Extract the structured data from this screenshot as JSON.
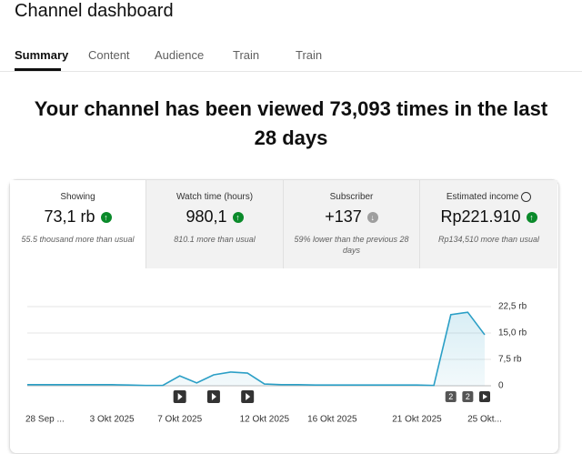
{
  "header": {
    "title": "Channel dashboard"
  },
  "tabs": [
    "Summary",
    "Content",
    "Audience",
    "Train",
    "Train"
  ],
  "headline": "Your channel has been viewed 73,093 times in the last 28 days",
  "metrics": [
    {
      "label": "Showing",
      "value": "73,1 rb",
      "note": "55.5 thousand more than usual"
    },
    {
      "label": "Watch time (hours)",
      "value": "980,1",
      "note": "810.1 more than usual"
    },
    {
      "label": "Subscriber",
      "value": "+137",
      "note": "59% lower than the previous 28 days"
    },
    {
      "label": "Estimated income",
      "value": "Rp221.910",
      "note": "Rp134,510 more than usual"
    }
  ],
  "chart_data": {
    "type": "line",
    "categories": [
      "28 Sep ...",
      null,
      null,
      null,
      null,
      "3 Okt 2025",
      null,
      null,
      null,
      "7 Okt 2025",
      null,
      null,
      null,
      null,
      "12 Okt 2025",
      null,
      null,
      null,
      "16 Okt 2025",
      null,
      null,
      null,
      null,
      "21 Okt 2025",
      null,
      null,
      null,
      "25 Okt..."
    ],
    "values": [
      0.3,
      0.3,
      0.3,
      0.3,
      0.3,
      0.3,
      0.2,
      0.1,
      0.1,
      2.8,
      0.8,
      3.1,
      3.9,
      3.6,
      0.5,
      0.3,
      0.3,
      0.2,
      0.2,
      0.2,
      0.2,
      0.2,
      0.2,
      0.2,
      0.1,
      20.2,
      20.9,
      14.5
    ],
    "color": "#2b9fc6",
    "ylim": [
      0,
      22.5
    ],
    "yticks": [
      0,
      {
        "value": 7.5,
        "label": "7,5 rb"
      },
      {
        "value": 15,
        "label": "15,0 rb"
      },
      {
        "value": 22.5,
        "label": "22,5 rb"
      }
    ],
    "grid": true,
    "annotations": [
      "2",
      "2"
    ]
  }
}
